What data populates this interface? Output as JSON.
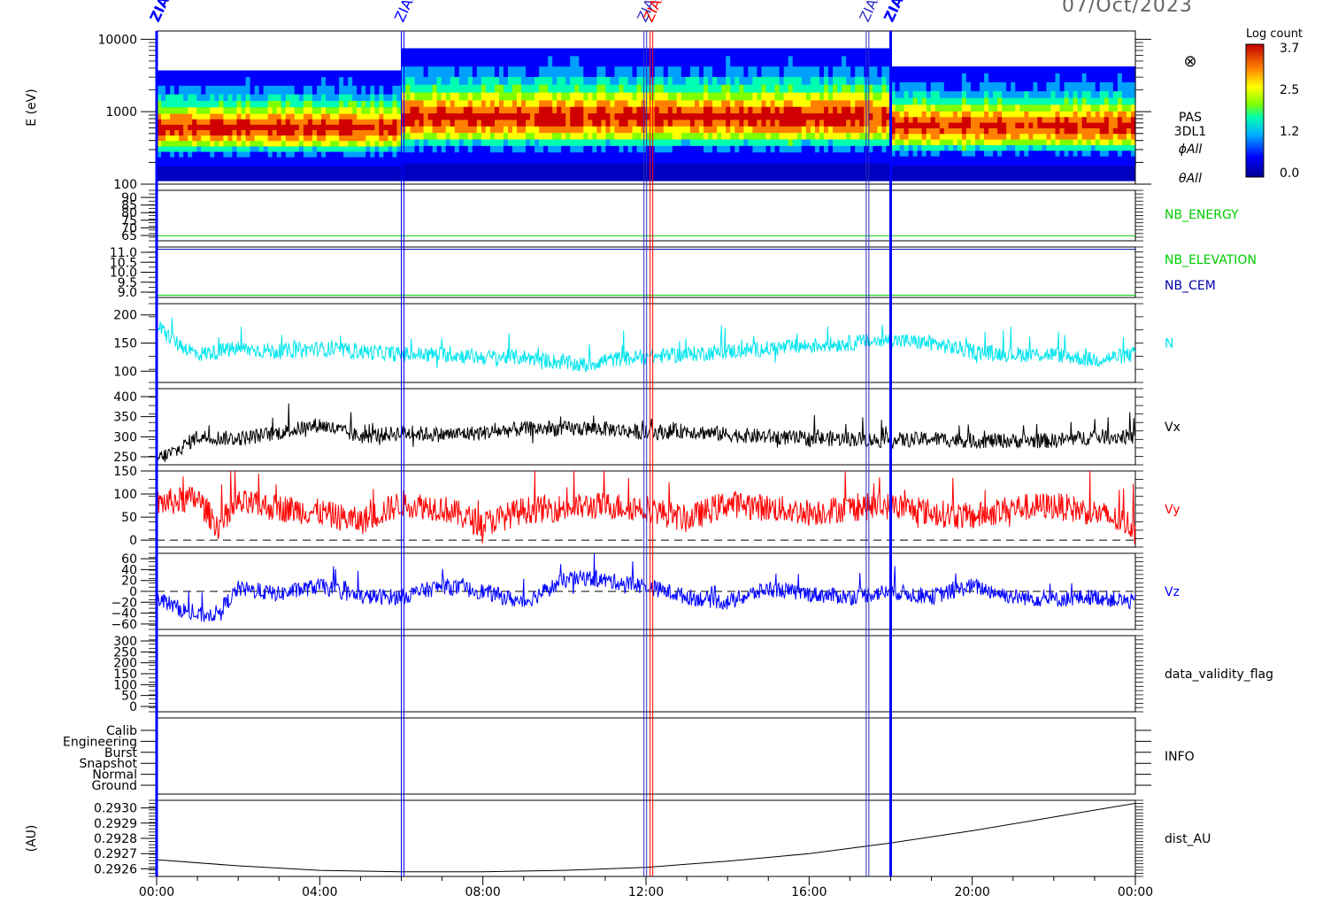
{
  "date_label": "07/Oct/2023",
  "colorbar": {
    "title": "Log count",
    "ticks": [
      "3.7",
      "2.5",
      "1.2",
      "0.0"
    ]
  },
  "time_ticks": [
    "00:00",
    "04:00",
    "08:00",
    "12:00",
    "16:00",
    "20:00",
    "00:00"
  ],
  "event_marks": [
    {
      "hour": 0.0,
      "label": "ZIAS",
      "color": "#0000ff",
      "bold": true
    },
    {
      "hour": 6.0,
      "label": "ZIAS",
      "color": "#0000ff",
      "bold": false
    },
    {
      "hour": 11.95,
      "label": "ZIAS",
      "color": "#3030c0",
      "bold": false
    },
    {
      "hour": 12.1,
      "label": "ZIAS",
      "color": "#ff0000",
      "bold": false
    },
    {
      "hour": 17.4,
      "label": "ZIAS",
      "color": "#3030c0",
      "bold": false
    },
    {
      "hour": 18.0,
      "label": "ZIAS",
      "color": "#0000ff",
      "bold": true
    }
  ],
  "panels": {
    "spectrogram": {
      "ylabel": "E (eV)",
      "yticks": [
        "10000",
        "1000",
        "100"
      ],
      "side_labels": [
        "PAS",
        "3DL1",
        "ϕAll",
        "θAll"
      ],
      "symbol": "⊗"
    },
    "nb_energy": {
      "yticks": [
        "90",
        "85",
        "80",
        "75",
        "70",
        "65"
      ],
      "label": "NB_ENERGY",
      "label_color": "#00cc00"
    },
    "nb_elev": {
      "yticks": [
        "11.0",
        "10.5",
        "10.0",
        "9.5",
        "9.0"
      ],
      "labels": [
        {
          "text": "NB_ELEVATION",
          "color": "#00cc00"
        },
        {
          "text": "NB_CEM",
          "color": "#0000aa"
        }
      ]
    },
    "density": {
      "yticks": [
        "200",
        "150",
        "100"
      ],
      "label": "N",
      "color": "#00e5ee"
    },
    "vx": {
      "yticks": [
        "400",
        "350",
        "300",
        "250"
      ],
      "label": "Vx",
      "color": "#000000"
    },
    "vy": {
      "yticks": [
        "150",
        "100",
        "50",
        "0"
      ],
      "label": "Vy",
      "color": "#ff0000"
    },
    "vz": {
      "yticks": [
        "60",
        "40",
        "20",
        "0",
        "−20",
        "−40",
        "−60"
      ],
      "label": "Vz",
      "color": "#0000ff"
    },
    "validity": {
      "yticks": [
        "300",
        "250",
        "200",
        "150",
        "100",
        "50",
        "0"
      ],
      "label": "data_validity_flag"
    },
    "info": {
      "yticks": [
        "Calib",
        "Engineering",
        "Burst",
        "Snapshot",
        "Normal",
        "Ground"
      ],
      "label": "INFO"
    },
    "dist": {
      "ylabel": "(AU)",
      "yticks": [
        "0.2930",
        "0.2929",
        "0.2928",
        "0.2927",
        "0.2926"
      ],
      "label": "dist_AU"
    }
  },
  "chart_data": [
    {
      "type": "heatmap",
      "title": "PAS 3DL1",
      "ylabel": "E (eV)",
      "x_unit": "hours",
      "ylim": [
        100,
        13000
      ],
      "y_scale": "log",
      "zlabel": "Log count",
      "zlim": [
        0.0,
        3.7
      ],
      "segments": [
        {
          "x": [
            0,
            6
          ],
          "emax": 3700
        },
        {
          "x": [
            6,
            12.1
          ],
          "emax": 7500
        },
        {
          "x": [
            12.1,
            18
          ],
          "emax": 7500
        },
        {
          "x": [
            18,
            24
          ],
          "emax": 4200
        }
      ]
    },
    {
      "type": "line",
      "label": "N",
      "x_unit": "hours",
      "ylim": [
        80,
        220
      ],
      "x": [
        0,
        0.5,
        1,
        2,
        3,
        4,
        5,
        6,
        7,
        8,
        9,
        10,
        10.5,
        11,
        12,
        13,
        14,
        15,
        16,
        17,
        18,
        19,
        20,
        21,
        22,
        23,
        24
      ],
      "values": [
        180,
        150,
        130,
        140,
        135,
        140,
        135,
        130,
        130,
        125,
        125,
        115,
        110,
        120,
        125,
        130,
        135,
        140,
        145,
        150,
        155,
        150,
        135,
        130,
        130,
        120,
        130
      ]
    },
    {
      "type": "line",
      "label": "Vx",
      "x_unit": "hours",
      "ylim": [
        230,
        420
      ],
      "x": [
        0,
        0.5,
        1,
        2,
        3,
        4,
        5,
        6,
        7,
        8,
        9,
        10,
        11,
        12,
        13,
        14,
        15,
        16,
        17,
        18,
        19,
        20,
        21,
        22,
        23,
        24
      ],
      "values": [
        245,
        265,
        300,
        295,
        310,
        330,
        300,
        310,
        305,
        310,
        320,
        320,
        320,
        310,
        315,
        305,
        300,
        295,
        295,
        290,
        295,
        290,
        290,
        290,
        300,
        300
      ]
    },
    {
      "type": "line",
      "label": "Vy",
      "x_unit": "hours",
      "ylim": [
        -15,
        150
      ],
      "x": [
        0,
        1,
        1.5,
        2,
        3,
        4,
        5,
        6,
        7,
        8,
        9,
        10,
        11,
        12,
        13,
        14,
        15,
        16,
        17,
        18,
        19,
        20,
        21,
        22,
        23,
        24
      ],
      "values": [
        80,
        90,
        30,
        80,
        70,
        60,
        40,
        80,
        70,
        35,
        65,
        70,
        75,
        70,
        45,
        80,
        70,
        60,
        70,
        75,
        60,
        50,
        70,
        75,
        60,
        30
      ]
    },
    {
      "type": "line",
      "label": "Vz",
      "x_unit": "hours",
      "ylim": [
        -70,
        70
      ],
      "x": [
        0,
        0.5,
        1,
        1.5,
        2,
        3,
        4,
        5,
        6,
        7,
        8,
        9,
        10,
        10.5,
        11,
        12,
        13,
        14,
        15,
        16,
        17,
        18,
        19,
        20,
        21,
        22,
        23,
        24
      ],
      "values": [
        -10,
        -30,
        -45,
        -40,
        5,
        -5,
        10,
        -10,
        -10,
        10,
        0,
        -20,
        20,
        25,
        20,
        10,
        -10,
        -20,
        5,
        -5,
        -10,
        0,
        -10,
        10,
        -10,
        -15,
        -10,
        -20
      ]
    },
    {
      "type": "line",
      "label": "NB_ENERGY",
      "x_unit": "hours",
      "ylim": [
        62,
        92
      ],
      "x": [
        0,
        24
      ],
      "values": [
        65,
        65
      ]
    },
    {
      "type": "line",
      "label": "NB_ELEVATION",
      "x_unit": "hours",
      "ylim": [
        8.9,
        11.1
      ],
      "x": [
        0,
        24
      ],
      "values": [
        9.0,
        9.0
      ]
    },
    {
      "type": "line",
      "label": "NB_CEM",
      "x_unit": "hours",
      "ylim": [
        8.9,
        11.1
      ],
      "x": [
        0,
        24
      ],
      "values": [
        11.0,
        11.0
      ]
    },
    {
      "type": "line",
      "label": "dist_AU",
      "x_unit": "hours",
      "ylim": [
        0.29255,
        0.29305
      ],
      "x": [
        0,
        2,
        4,
        6,
        8,
        10,
        12,
        14,
        16,
        18,
        20,
        22,
        24
      ],
      "values": [
        0.29266,
        0.29262,
        0.29259,
        0.29258,
        0.29258,
        0.29259,
        0.29261,
        0.29265,
        0.2927,
        0.29277,
        0.29285,
        0.29294,
        0.29303
      ]
    }
  ]
}
